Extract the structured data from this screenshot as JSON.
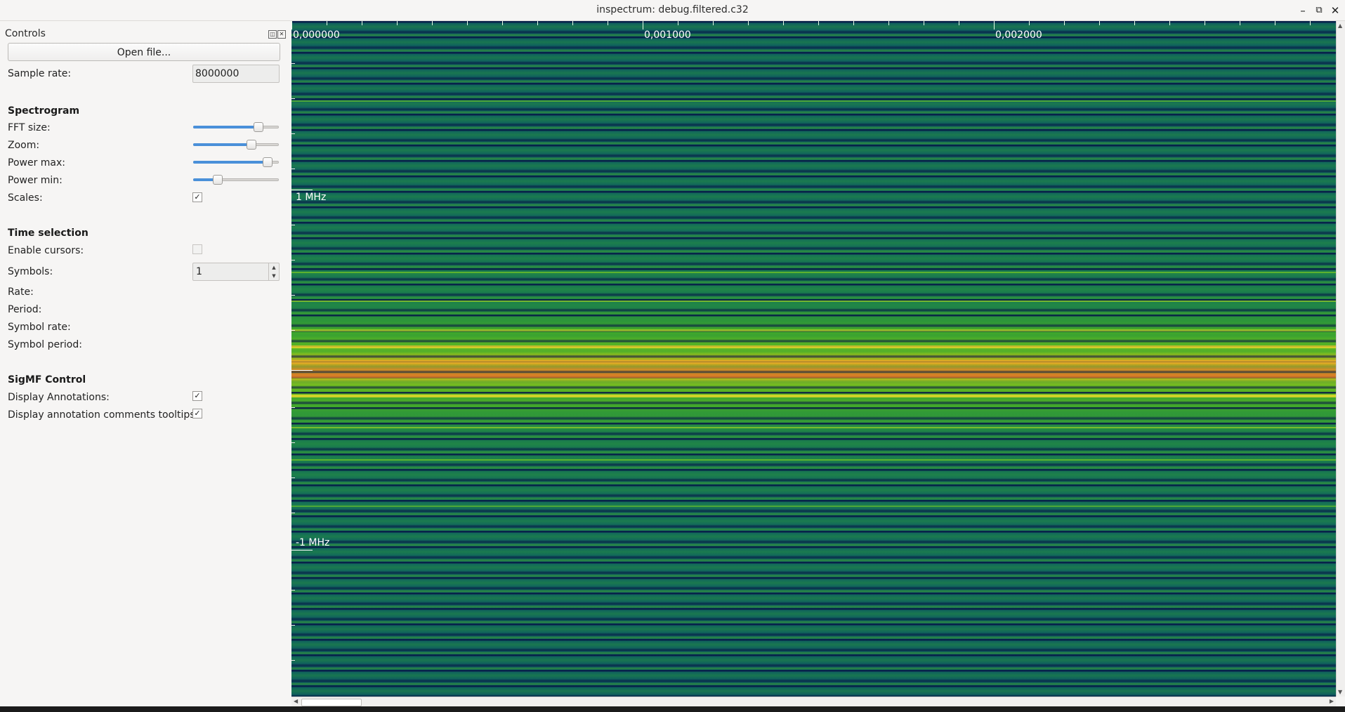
{
  "window": {
    "title": "inspectrum: debug.filtered.c32",
    "minimize": "–",
    "maximize": "⧉",
    "close": "✕"
  },
  "controls": {
    "title": "Controls",
    "float_icon": "◫",
    "close_icon": "✕",
    "open_file_label": "Open file...",
    "sample_rate_label": "Sample rate:",
    "sample_rate_value": "8000000",
    "spectrogram": {
      "heading": "Spectrogram",
      "fft_size_label": "FFT size:",
      "fft_size_level": 0.75,
      "zoom_label": "Zoom:",
      "zoom_level": 0.67,
      "power_max_label": "Power max:",
      "power_max_level": 0.86,
      "power_min_label": "Power min:",
      "power_min_level": 0.28,
      "scales_label": "Scales:",
      "scales_checked": true
    },
    "time_selection": {
      "heading": "Time selection",
      "enable_cursors_label": "Enable cursors:",
      "enable_cursors_checked": false,
      "symbols_label": "Symbols:",
      "symbols_value": "1",
      "rate_label": "Rate:",
      "period_label": "Period:",
      "symbol_rate_label": "Symbol rate:",
      "symbol_period_label": "Symbol period:"
    },
    "sigmf": {
      "heading": "SigMF Control",
      "display_annotations_label": "Display Annotations:",
      "display_annotations_checked": true,
      "display_tooltips_label": "Display annotation comments tooltips:",
      "display_tooltips_checked": true
    }
  },
  "spectrogram_view": {
    "time_labels": [
      "0,000000",
      "0,001000",
      "0,002000"
    ],
    "freq_labels": [
      "1 MHz",
      "-1 MHz"
    ],
    "colors": {
      "background": "#0f5f5e",
      "signal_peak": "#d98b25",
      "signal_mid": "#e2b81a",
      "signal_edge": "#6fbf1f"
    }
  }
}
